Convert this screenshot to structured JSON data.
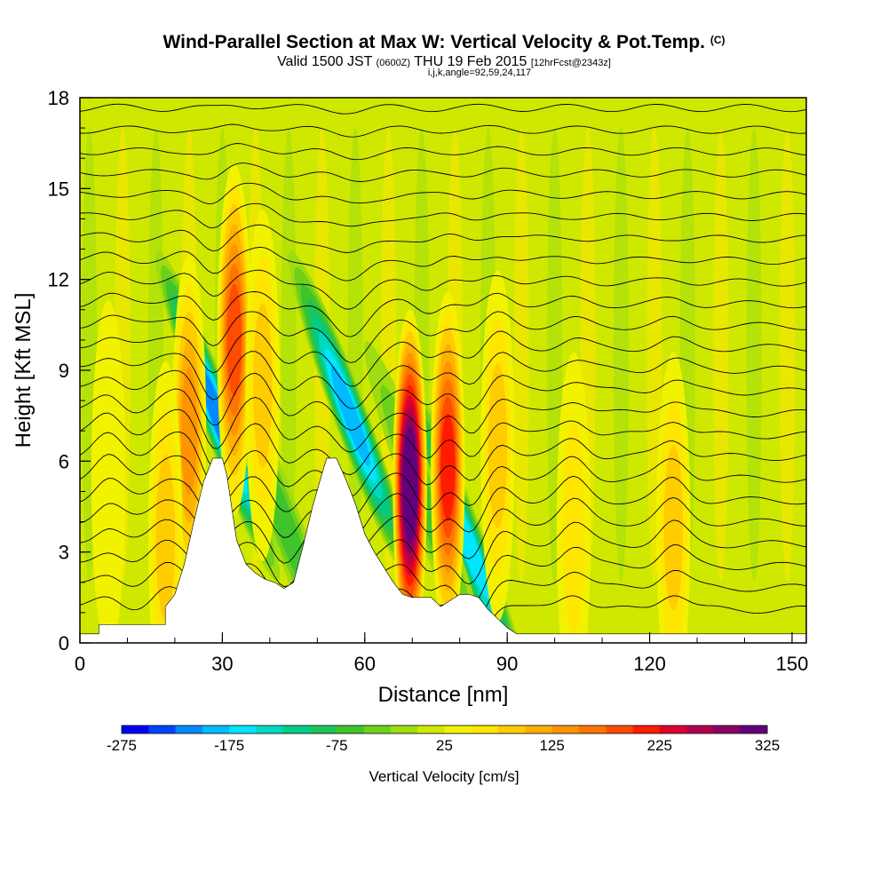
{
  "header": {
    "title": "Wind-Parallel Section at Max W: Vertical Velocity & Pot.Temp.",
    "copyright": "(C)",
    "valid_prefix": "Valid 1500 JST",
    "zulu": "(0600Z)",
    "valid_date": "THU 19 Feb 2015",
    "forecast": "[12hrFcst@2343z]",
    "indices": "i,j,k,angle=92,59,24,117"
  },
  "chart_data": {
    "type": "heatmap",
    "xlabel": "Distance [nm]",
    "ylabel": "Height [Kft MSL]",
    "xlim": [
      0,
      153
    ],
    "ylim": [
      0,
      18
    ],
    "x_ticks": [
      0,
      30,
      60,
      90,
      120,
      150
    ],
    "y_ticks": [
      0,
      3,
      6,
      9,
      12,
      15,
      18
    ],
    "colorbar": {
      "title": "Vertical Velocity [cm/s]",
      "labels": [
        "-275",
        "-175",
        "-75",
        "25",
        "125",
        "225",
        "325"
      ],
      "range": [
        -275,
        325
      ],
      "colors": [
        "#0000ff",
        "#0044ff",
        "#0088ff",
        "#00bbff",
        "#00e6ff",
        "#00d8c0",
        "#00cc88",
        "#1dc45a",
        "#3fc42c",
        "#6ed01a",
        "#9fdc10",
        "#cfe800",
        "#f2f200",
        "#ffe600",
        "#ffcc00",
        "#ffb000",
        "#ff9400",
        "#ff7400",
        "#ff4c00",
        "#ff1c00",
        "#dc0030",
        "#b0004c",
        "#8a0064",
        "#64007c"
      ]
    },
    "terrain_profile": [
      [
        0,
        0.3
      ],
      [
        4,
        0.3
      ],
      [
        4,
        0.6
      ],
      [
        12,
        0.6
      ],
      [
        18,
        0.6
      ],
      [
        18,
        1.2
      ],
      [
        20,
        1.6
      ],
      [
        22,
        2.6
      ],
      [
        24,
        4
      ],
      [
        26,
        5.3
      ],
      [
        28,
        6.1
      ],
      [
        30,
        6.1
      ],
      [
        31,
        5.5
      ],
      [
        33,
        3.4
      ],
      [
        35,
        2.6
      ],
      [
        37,
        2.3
      ],
      [
        39,
        2.1
      ],
      [
        41,
        2
      ],
      [
        43,
        1.8
      ],
      [
        45,
        2
      ],
      [
        47,
        3.2
      ],
      [
        49,
        4.5
      ],
      [
        51,
        5.6
      ],
      [
        52,
        6.1
      ],
      [
        54,
        6.1
      ],
      [
        56,
        5.4
      ],
      [
        58,
        4.6
      ],
      [
        60,
        3.6
      ],
      [
        62,
        3
      ],
      [
        64,
        2.5
      ],
      [
        66,
        2
      ],
      [
        68,
        1.6
      ],
      [
        70,
        1.5
      ],
      [
        72,
        1.5
      ],
      [
        74,
        1.5
      ],
      [
        76,
        1.2
      ],
      [
        78,
        1.4
      ],
      [
        80,
        1.6
      ],
      [
        82,
        1.6
      ],
      [
        84,
        1.5
      ],
      [
        86,
        1.1
      ],
      [
        88,
        0.8
      ],
      [
        90,
        0.5
      ],
      [
        92,
        0.3
      ],
      [
        98,
        0.3
      ],
      [
        98,
        0.3
      ],
      [
        153,
        0.3
      ]
    ],
    "updraft_cores": [
      {
        "x": 69.5,
        "y": 5.2,
        "w": 325
      },
      {
        "x": 77.5,
        "y": 5.8,
        "w": 200
      },
      {
        "x": 32.5,
        "y": 10,
        "w": 175
      },
      {
        "x": 23,
        "y": 7,
        "w": 125
      },
      {
        "x": 38.5,
        "y": 8.5,
        "w": 75
      },
      {
        "x": 88,
        "y": 6.5,
        "w": 75
      },
      {
        "x": 18,
        "y": 3.5,
        "w": 75
      },
      {
        "x": 125,
        "y": 3.8,
        "w": 75
      },
      {
        "x": 104,
        "y": 3.8,
        "w": 50
      },
      {
        "x": 6,
        "y": 5.5,
        "w": 25
      }
    ],
    "downdraft_cores": [
      {
        "x": 29,
        "y": 7.5,
        "w": -225
      },
      {
        "x": 57,
        "y": 7.5,
        "w": -200
      },
      {
        "x": 82,
        "y": 3.2,
        "w": -175
      },
      {
        "x": 43,
        "y": 4,
        "w": -75
      },
      {
        "x": 73,
        "y": 4.5,
        "w": -75
      }
    ]
  }
}
